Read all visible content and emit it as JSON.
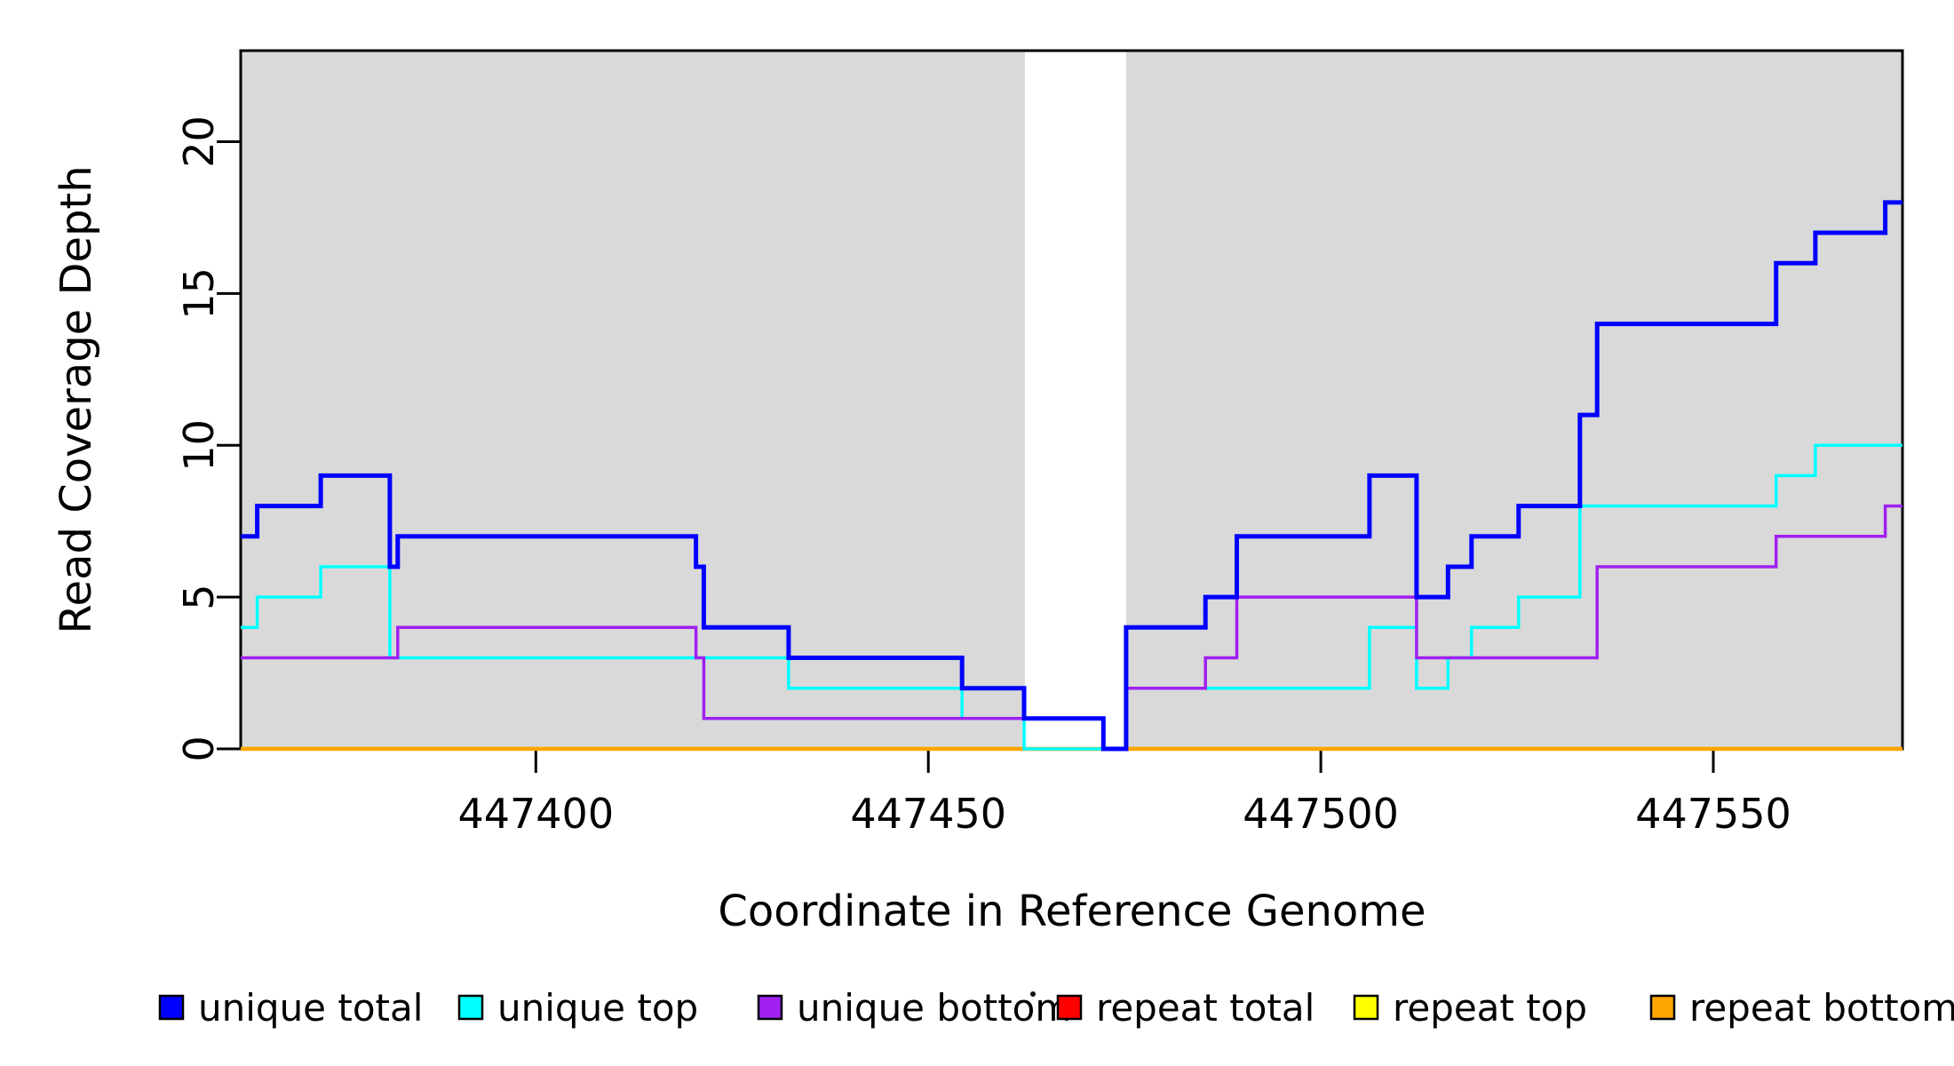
{
  "page": {
    "background": "#ffffff"
  },
  "chart_data": {
    "type": "line",
    "subtype": "step-coverage",
    "title": "",
    "xlabel": "Coordinate in Reference Genome",
    "ylabel": "Read Coverage Depth",
    "xlim": [
      447362.4,
      447574.1
    ],
    "ylim": [
      0,
      23
    ],
    "x_ticks": [
      447400,
      447450,
      447500,
      447550
    ],
    "y_ticks": [
      0,
      5,
      10,
      15,
      20
    ],
    "grid": "off",
    "legend_position": "bottom",
    "shade_color": "#d9d9d9",
    "frame_color": "#000000",
    "shaded_regions": [
      [
        447362.4,
        447462.3
      ],
      [
        447475.2,
        447574.1
      ]
    ],
    "x_end": 447574.1,
    "series": [
      {
        "name": "unique total",
        "color": "#0000ff",
        "width": 5,
        "points": [
          [
            447362.4,
            7
          ],
          [
            447364.5,
            8
          ],
          [
            447372.6,
            9
          ],
          [
            447381.4,
            6
          ],
          [
            447382.4,
            7
          ],
          [
            447420.4,
            6
          ],
          [
            447421.4,
            4
          ],
          [
            447432.2,
            3
          ],
          [
            447454.3,
            2
          ],
          [
            447462.2,
            1
          ],
          [
            447472.3,
            0
          ],
          [
            447475.2,
            4
          ],
          [
            447485.3,
            5
          ],
          [
            447489.3,
            7
          ],
          [
            447506.2,
            9
          ],
          [
            447512.2,
            5
          ],
          [
            447516.2,
            6
          ],
          [
            447519.2,
            7
          ],
          [
            447525.2,
            8
          ],
          [
            447533.0,
            11
          ],
          [
            447535.2,
            14
          ],
          [
            447558.0,
            16
          ],
          [
            447563.0,
            17
          ],
          [
            447571.9,
            18
          ]
        ]
      },
      {
        "name": "unique top",
        "color": "#00ffff",
        "width": 3.5,
        "points": [
          [
            447362.4,
            4
          ],
          [
            447364.5,
            5
          ],
          [
            447372.6,
            6
          ],
          [
            447381.4,
            3
          ],
          [
            447432.2,
            2
          ],
          [
            447454.3,
            1
          ],
          [
            447462.2,
            0
          ],
          [
            447475.2,
            2
          ],
          [
            447506.2,
            4
          ],
          [
            447512.2,
            2
          ],
          [
            447516.2,
            3
          ],
          [
            447519.2,
            4
          ],
          [
            447525.2,
            5
          ],
          [
            447533.0,
            8
          ],
          [
            447558.0,
            9
          ],
          [
            447563.0,
            10
          ]
        ]
      },
      {
        "name": "unique bottom",
        "color": "#a020f0",
        "width": 3.5,
        "points": [
          [
            447362.4,
            3
          ],
          [
            447382.4,
            4
          ],
          [
            447420.4,
            3
          ],
          [
            447421.4,
            1
          ],
          [
            447472.3,
            0
          ],
          [
            447475.2,
            2
          ],
          [
            447485.3,
            3
          ],
          [
            447489.3,
            5
          ],
          [
            447512.2,
            3
          ],
          [
            447535.2,
            6
          ],
          [
            447558.0,
            7
          ],
          [
            447571.9,
            8
          ]
        ]
      },
      {
        "name": "repeat total",
        "color": "#ff0000",
        "width": 3.5,
        "points": [
          [
            447362.4,
            0
          ]
        ]
      },
      {
        "name": "repeat top",
        "color": "#ffff00",
        "width": 3.5,
        "points": [
          [
            447362.4,
            0
          ]
        ]
      },
      {
        "name": "repeat bottom",
        "color": "#ffa500",
        "width": 4.5,
        "points": [
          [
            447362.4,
            0
          ]
        ]
      }
    ]
  }
}
